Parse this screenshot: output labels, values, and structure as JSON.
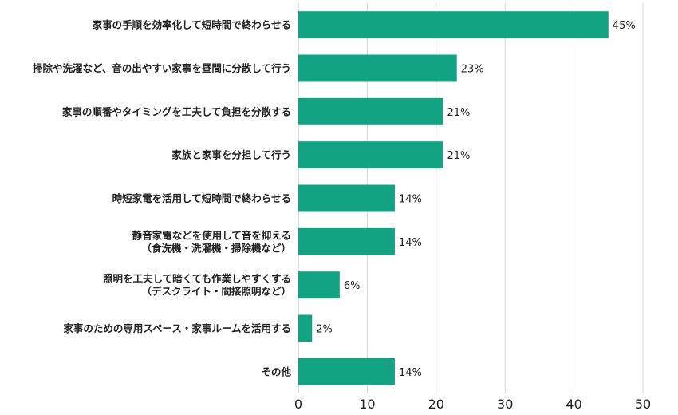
{
  "chart_data": {
    "type": "bar",
    "orientation": "horizontal",
    "categories": [
      [
        "家事の手順を効率化して短時間で終わらせる"
      ],
      [
        "掃除や洗濯など、音の出やすい家事を昼間に分散して行う"
      ],
      [
        "家事の順番やタイミングを工夫して負担を分散する"
      ],
      [
        "家族と家事を分担して行う"
      ],
      [
        "時短家電を活用して短時間で終わらせる"
      ],
      [
        "静音家電などを使用して音を抑える",
        "（食洗機・洗濯機・掃除機など）"
      ],
      [
        "照明を工夫して暗くても作業しやすくする",
        "（デスクライト・間接照明など）"
      ],
      [
        "家事のための専用スペース・家事ルームを活用する"
      ],
      [
        "その他"
      ]
    ],
    "values": [
      45,
      23,
      21,
      21,
      14,
      14,
      6,
      2,
      14
    ],
    "value_labels": [
      "45%",
      "23%",
      "21%",
      "21%",
      "14%",
      "14%",
      "6%",
      "2%",
      "14%"
    ],
    "xlim": [
      0,
      50
    ],
    "xticks": [
      "0",
      "10",
      "20",
      "30",
      "40",
      "50"
    ],
    "grid": true,
    "bar_color": "#12a383",
    "grid_color": "#d9d9d9"
  }
}
